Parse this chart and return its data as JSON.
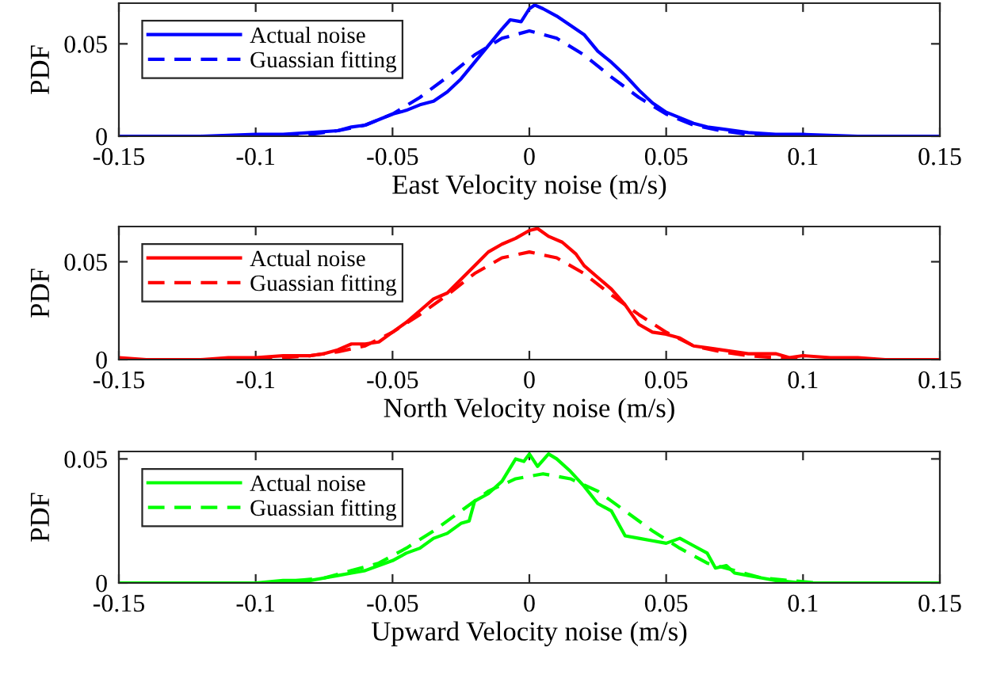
{
  "chart_data": [
    {
      "type": "line",
      "xlabel": "East Velocity noise (m/s)",
      "ylabel": "PDF",
      "xlim": [
        -0.15,
        0.15
      ],
      "ylim": [
        0,
        0.072
      ],
      "xticks": [
        -0.15,
        -0.1,
        -0.05,
        0,
        0.05,
        0.1,
        0.15
      ],
      "yticks": [
        0,
        0.05
      ],
      "legend": "top left",
      "grid": false,
      "series": [
        {
          "name": "Actual noise",
          "color": "#0000ff",
          "line_style": "solid",
          "x": [
            -0.15,
            -0.12,
            -0.1,
            -0.09,
            -0.08,
            -0.07,
            -0.065,
            -0.06,
            -0.05,
            -0.045,
            -0.04,
            -0.035,
            -0.03,
            -0.025,
            -0.02,
            -0.015,
            -0.01,
            -0.007,
            -0.003,
            0,
            0.002,
            0.005,
            0.01,
            0.015,
            0.02,
            0.025,
            0.03,
            0.035,
            0.04,
            0.045,
            0.05,
            0.055,
            0.06,
            0.065,
            0.07,
            0.08,
            0.09,
            0.1,
            0.12,
            0.15
          ],
          "values": [
            0,
            0,
            0.001,
            0.001,
            0.002,
            0.003,
            0.005,
            0.006,
            0.012,
            0.014,
            0.017,
            0.019,
            0.024,
            0.031,
            0.04,
            0.049,
            0.058,
            0.063,
            0.062,
            0.069,
            0.071,
            0.069,
            0.065,
            0.06,
            0.055,
            0.046,
            0.04,
            0.033,
            0.025,
            0.018,
            0.013,
            0.01,
            0.007,
            0.005,
            0.004,
            0.002,
            0.001,
            0.001,
            0,
            0
          ]
        },
        {
          "name": "Guassian fitting",
          "color": "#0000ff",
          "line_style": "dashed",
          "x": [
            -0.1,
            -0.09,
            -0.08,
            -0.07,
            -0.06,
            -0.05,
            -0.04,
            -0.03,
            -0.02,
            -0.01,
            0,
            0.01,
            0.02,
            0.03,
            0.04,
            0.05,
            0.06,
            0.07,
            0.08,
            0.09,
            0.1
          ],
          "values": [
            0,
            0,
            0.001,
            0.003,
            0.006,
            0.012,
            0.021,
            0.032,
            0.044,
            0.053,
            0.057,
            0.053,
            0.044,
            0.032,
            0.021,
            0.012,
            0.006,
            0.003,
            0.001,
            0,
            0
          ]
        }
      ]
    },
    {
      "type": "line",
      "xlabel": "North Velocity noise (m/s)",
      "ylabel": "PDF",
      "xlim": [
        -0.15,
        0.15
      ],
      "ylim": [
        0,
        0.068
      ],
      "xticks": [
        -0.15,
        -0.1,
        -0.05,
        0,
        0.05,
        0.1,
        0.15
      ],
      "yticks": [
        0,
        0.05
      ],
      "legend": "top left",
      "grid": false,
      "series": [
        {
          "name": "Actual noise",
          "color": "#ff0000",
          "line_style": "solid",
          "x": [
            -0.15,
            -0.14,
            -0.12,
            -0.11,
            -0.1,
            -0.09,
            -0.085,
            -0.08,
            -0.075,
            -0.07,
            -0.065,
            -0.06,
            -0.055,
            -0.05,
            -0.045,
            -0.04,
            -0.035,
            -0.03,
            -0.025,
            -0.02,
            -0.015,
            -0.01,
            -0.005,
            0,
            0.003,
            0.007,
            0.012,
            0.017,
            0.02,
            0.025,
            0.03,
            0.035,
            0.04,
            0.045,
            0.05,
            0.055,
            0.06,
            0.065,
            0.07,
            0.075,
            0.08,
            0.09,
            0.095,
            0.1,
            0.11,
            0.12,
            0.13,
            0.15
          ],
          "values": [
            0.001,
            0,
            0,
            0.001,
            0.001,
            0.002,
            0.002,
            0.002,
            0.003,
            0.005,
            0.008,
            0.008,
            0.009,
            0.014,
            0.019,
            0.025,
            0.031,
            0.034,
            0.041,
            0.048,
            0.055,
            0.059,
            0.062,
            0.066,
            0.067,
            0.063,
            0.06,
            0.054,
            0.048,
            0.042,
            0.036,
            0.028,
            0.018,
            0.014,
            0.013,
            0.011,
            0.007,
            0.006,
            0.005,
            0.004,
            0.003,
            0.003,
            0.001,
            0.002,
            0.001,
            0.001,
            0,
            0
          ]
        },
        {
          "name": "Guassian fitting",
          "color": "#ff0000",
          "line_style": "dashed",
          "x": [
            -0.1,
            -0.09,
            -0.08,
            -0.07,
            -0.06,
            -0.05,
            -0.04,
            -0.03,
            -0.02,
            -0.01,
            0,
            0.01,
            0.02,
            0.03,
            0.04,
            0.05,
            0.06,
            0.07,
            0.08,
            0.09,
            0.1
          ],
          "values": [
            0,
            0.001,
            0.002,
            0.004,
            0.007,
            0.014,
            0.023,
            0.033,
            0.044,
            0.052,
            0.055,
            0.052,
            0.044,
            0.033,
            0.023,
            0.014,
            0.007,
            0.004,
            0.002,
            0.001,
            0
          ]
        }
      ]
    },
    {
      "type": "line",
      "xlabel": "Upward Velocity noise (m/s)",
      "ylabel": "PDF",
      "xlim": [
        -0.15,
        0.15
      ],
      "ylim": [
        0,
        0.053
      ],
      "xticks": [
        -0.15,
        -0.1,
        -0.05,
        0,
        0.05,
        0.1,
        0.15
      ],
      "yticks": [
        0,
        0.05
      ],
      "legend": "top left",
      "grid": false,
      "series": [
        {
          "name": "Actual noise",
          "color": "#00ff00",
          "line_style": "solid",
          "x": [
            -0.15,
            -0.1,
            -0.09,
            -0.08,
            -0.075,
            -0.07,
            -0.065,
            -0.06,
            -0.055,
            -0.05,
            -0.045,
            -0.04,
            -0.035,
            -0.03,
            -0.025,
            -0.022,
            -0.02,
            -0.015,
            -0.01,
            -0.005,
            -0.002,
            0,
            0.003,
            0.007,
            0.01,
            0.015,
            0.02,
            0.025,
            0.03,
            0.035,
            0.04,
            0.045,
            0.05,
            0.055,
            0.06,
            0.065,
            0.068,
            0.072,
            0.075,
            0.08,
            0.085,
            0.09,
            0.1,
            0.15
          ],
          "values": [
            0,
            0,
            0.001,
            0.001,
            0.002,
            0.003,
            0.004,
            0.005,
            0.007,
            0.009,
            0.012,
            0.014,
            0.018,
            0.02,
            0.024,
            0.025,
            0.033,
            0.036,
            0.041,
            0.05,
            0.049,
            0.052,
            0.047,
            0.052,
            0.05,
            0.045,
            0.039,
            0.032,
            0.029,
            0.019,
            0.018,
            0.017,
            0.016,
            0.018,
            0.015,
            0.012,
            0.006,
            0.007,
            0.004,
            0.003,
            0.002,
            0.001,
            0,
            0
          ]
        },
        {
          "name": "Guassian fitting",
          "color": "#00ff00",
          "line_style": "dashed",
          "x": [
            -0.095,
            -0.075,
            -0.065,
            -0.055,
            -0.045,
            -0.035,
            -0.025,
            -0.015,
            -0.005,
            0.005,
            0.015,
            0.025,
            0.035,
            0.045,
            0.055,
            0.065,
            0.075,
            0.085,
            0.105
          ],
          "values": [
            0,
            0.002,
            0.005,
            0.008,
            0.014,
            0.021,
            0.029,
            0.037,
            0.042,
            0.044,
            0.042,
            0.037,
            0.029,
            0.021,
            0.014,
            0.008,
            0.005,
            0.002,
            0
          ]
        }
      ]
    }
  ]
}
